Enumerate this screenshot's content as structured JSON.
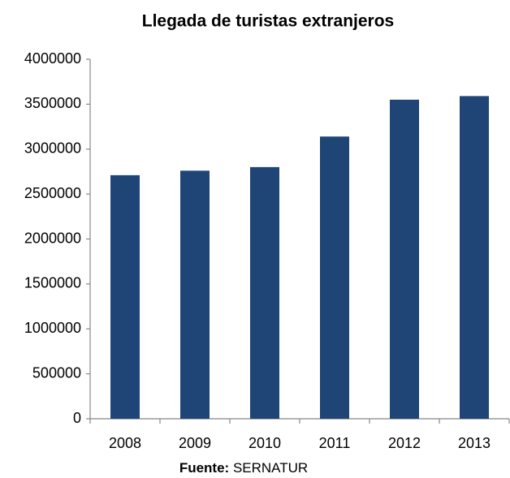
{
  "chart_data": {
    "type": "bar",
    "title": "Llegada de turistas extranjeros",
    "categories": [
      "2008",
      "2009",
      "2010",
      "2011",
      "2012",
      "2013"
    ],
    "values": [
      2710000,
      2760000,
      2800000,
      3140000,
      3550000,
      3590000
    ],
    "color": "#1f4577",
    "ylim": [
      0,
      4000000
    ],
    "yticks": [
      0,
      500000,
      1000000,
      1500000,
      2000000,
      2500000,
      3000000,
      3500000,
      4000000
    ],
    "grid": false,
    "source": {
      "label": "Fuente:",
      "text": "SERNATUR"
    }
  }
}
